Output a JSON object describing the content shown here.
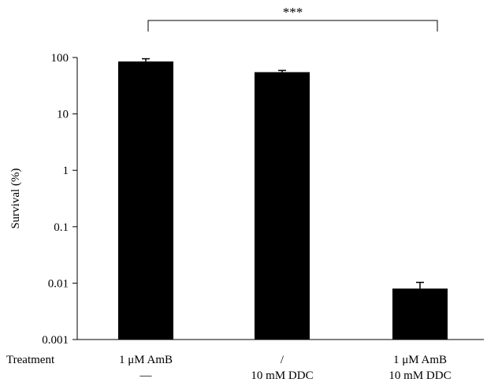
{
  "chart_data": {
    "type": "bar",
    "scale": "log",
    "ylabel": "Survival (%)",
    "ylim": [
      0.001,
      100
    ],
    "yticks": [
      {
        "value": 0.001,
        "label": "0.001"
      },
      {
        "value": 0.01,
        "label": "0.01"
      },
      {
        "value": 0.1,
        "label": "0.1"
      },
      {
        "value": 1,
        "label": "1"
      },
      {
        "value": 10,
        "label": "10"
      },
      {
        "value": 100,
        "label": "100"
      }
    ],
    "row_label": "Treatment",
    "categories": [
      {
        "line1": "1 μM AmB",
        "line2": "—"
      },
      {
        "line1": "/",
        "line2": "10 mM DDC"
      },
      {
        "line1": "1 μM AmB",
        "line2": "10 mM DDC"
      }
    ],
    "values": [
      85,
      55,
      0.008
    ],
    "errors": [
      10,
      4,
      0.0023
    ],
    "significance": {
      "from": 0,
      "to": 2,
      "label": "***"
    },
    "bar_color": "#000000"
  }
}
